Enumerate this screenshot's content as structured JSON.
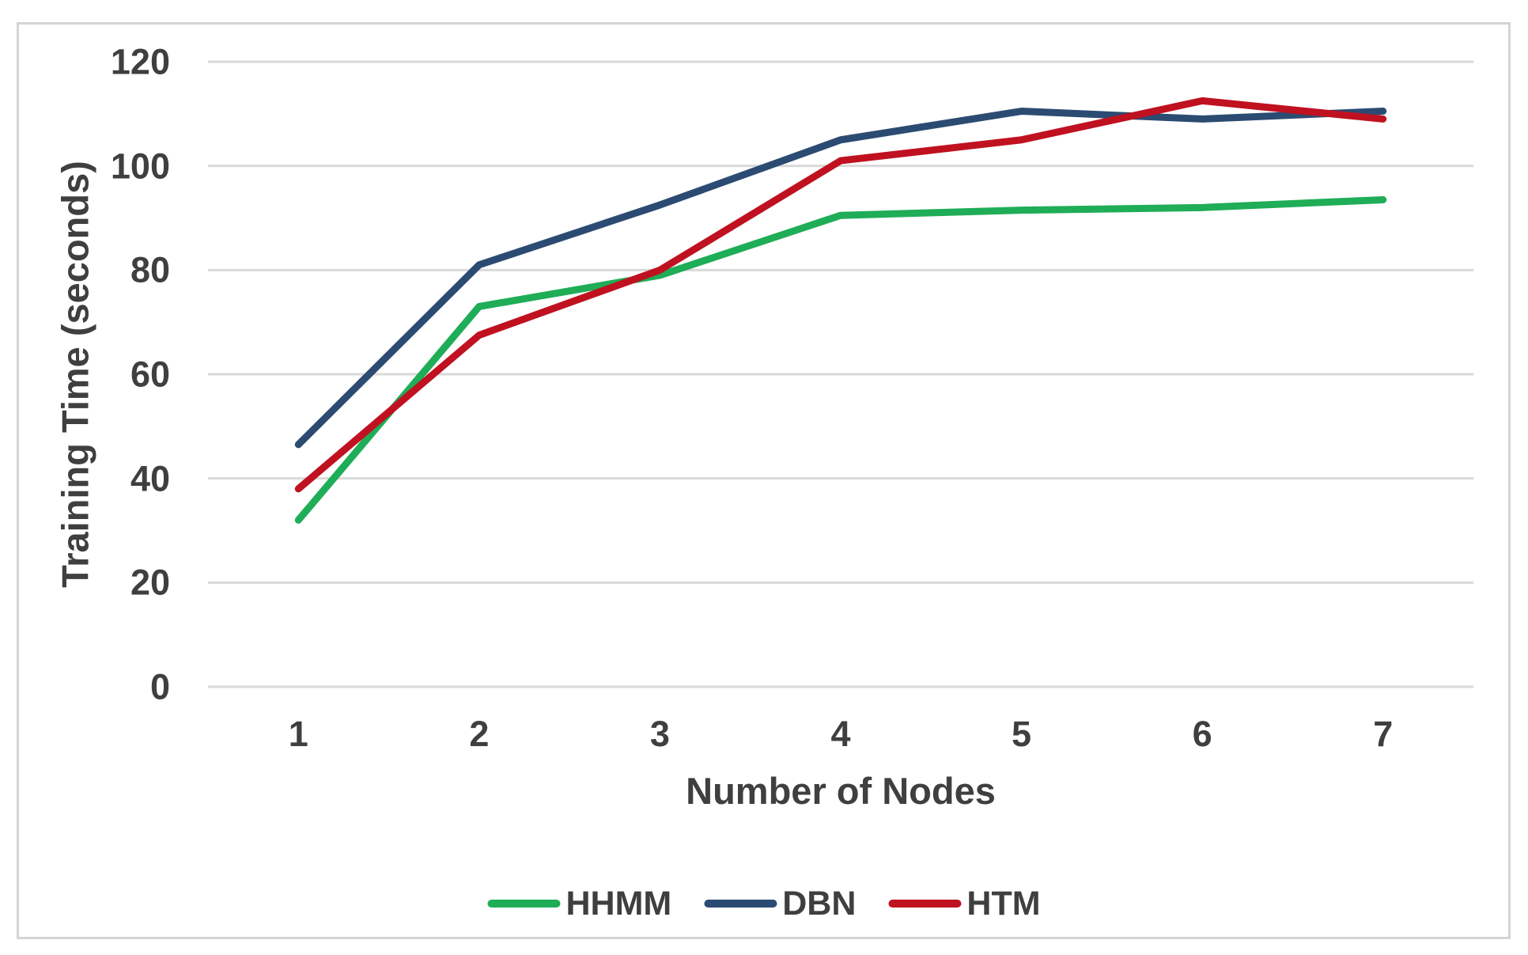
{
  "chart_data": {
    "type": "line",
    "title": "",
    "xlabel": "Number of Nodes",
    "ylabel": "Training Time (seconds)",
    "x_categories": [
      "1",
      "2",
      "3",
      "4",
      "5",
      "6",
      "7"
    ],
    "y_ticks": [
      0,
      20,
      40,
      60,
      80,
      100,
      120
    ],
    "ylim": [
      0,
      120
    ],
    "grid": "horizontal-only",
    "legend_position": "bottom-center",
    "series": [
      {
        "name": "HHMM",
        "color": "#1FAD57",
        "values": [
          32,
          73,
          79,
          90.5,
          91.5,
          92,
          93.5
        ]
      },
      {
        "name": "DBN",
        "color": "#2C4B72",
        "values": [
          46.5,
          81,
          92.5,
          105,
          110.5,
          109,
          110.5
        ]
      },
      {
        "name": "HTM",
        "color": "#C01120",
        "values": [
          38,
          67.5,
          80,
          101,
          105,
          112.5,
          109
        ]
      }
    ],
    "colors": {
      "text": "#3f3f3f",
      "grid": "#d9d9d9",
      "frame": "#d4d4d4",
      "background": "#ffffff"
    }
  }
}
